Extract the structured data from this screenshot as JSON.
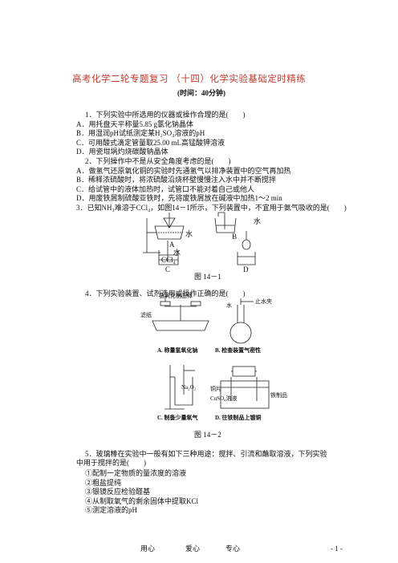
{
  "header": {
    "title": "高考化学二轮专题复习 （十四）化学实验基础定时精练",
    "subtitle": "(时间：40分钟)"
  },
  "questions": [
    {
      "stem": "1．下列实验中所选用的仪器或操作合理的是(　　)",
      "options": [
        "A．用托盘天平称量5.85 g氯化钠晶体",
        "B．用湿润pH试纸测定某H₂SO₄溶液的pH",
        "C．可用酸式滴定管量取25.00 mL高锰酸钾溶液",
        "D．用瓷坩埚灼烧碳酸钠晶体"
      ]
    },
    {
      "stem": "2．下列操作中不是从安全角度考虑的是(　　)",
      "options": [
        "A．做氢气还原氧化铜的实验时先通氢气以排净装置中的空气再加热",
        "B．稀释浓硫酸时，将浓硫酸沿烧杯壁慢慢注入水中并不断搅拌",
        "C．给试管中的液体加热时，试管口不能对着自己或他人",
        "D．用废铁屑制硫酸亚铁时，先将废铁屑放在碱液中加热1～2 min"
      ]
    },
    {
      "stem": "3．已知NH₃难溶于CCl₄，如图14－1所示，下列装置中，不宜用于氨气吸收的是(　　)"
    },
    {
      "stem": "4．下列实验装置、试剂选用或操作正确的是(　　)"
    },
    {
      "stem": "5．玻璃棒在实验中一般有如下三种用途：搅拌、引流和蘸取溶液，下列实验中用于搅拌的是(　　)",
      "items": [
        "①配制一定物质的量浓度的溶液",
        "②粗盐提纯",
        "③银镜反应检验醛基",
        "④从制取氧气的剩余固体中提取KCl",
        "⑤测定溶液的pH"
      ]
    }
  ],
  "figures": [
    {
      "labels": [
        "水",
        "A",
        "水",
        "B",
        "水",
        "CCl₄",
        "C",
        "D"
      ],
      "caption": "图 14－1"
    },
    {
      "labels": [
        "氢氧化钠固体",
        "滤纸",
        "水",
        "止水夹",
        "A. 称量氢氧化钠",
        "B. 检查装置气密性",
        "Na₂O₂",
        "铜片",
        "CuSO₄溶液",
        "铁制品",
        "C. 制备少量氧气",
        "D. 往铁制品上镀铜"
      ],
      "caption": "图 14－2"
    }
  ],
  "footer": {
    "mottos": [
      "用心",
      "爱心",
      "专心"
    ],
    "page": "- 1 -"
  }
}
